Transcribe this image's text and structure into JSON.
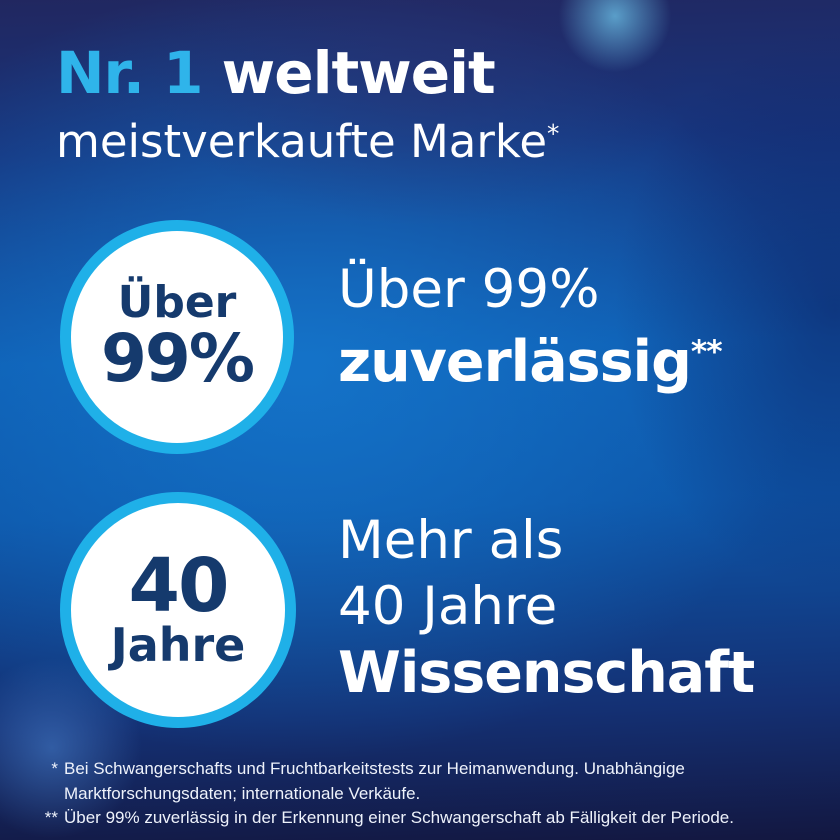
{
  "poster": {
    "header": {
      "title_highlight": "Nr. 1",
      "title_rest": " weltweit",
      "subtitle": "meistverkaufte Marke",
      "subtitle_sup": "*"
    },
    "stats": [
      {
        "badge_top": "Über",
        "badge_main": "99%",
        "line1": "Über 99%",
        "line2": "zuverlässig",
        "line2_sup": "**"
      },
      {
        "badge_main": "40",
        "badge_sub": "Jahre",
        "line1": "Mehr als",
        "line2": "40 Jahre",
        "line3": "Wissenschaft"
      }
    ],
    "footnotes": [
      {
        "marker": "*",
        "lines": [
          "Bei Schwangerschafts und Fruchtbarkeitstests zur Heimanwendung. Unabhängige",
          "Marktforschungsdaten; internationale Verkäufe."
        ]
      },
      {
        "marker": "**",
        "lines": [
          "Über 99% zuverlässig in der Erkennung einer Schwangerschaft ab Fälligkeit der Periode."
        ]
      }
    ],
    "colors": {
      "accent_cyan": "#2fb4ea",
      "circle_ring": "#1fb0e8",
      "circle_text_navy": "#153a6d",
      "background_bright_blue": "#0e5db2",
      "background_dark_navy": "#1b2158",
      "text_white": "#ffffff"
    }
  }
}
